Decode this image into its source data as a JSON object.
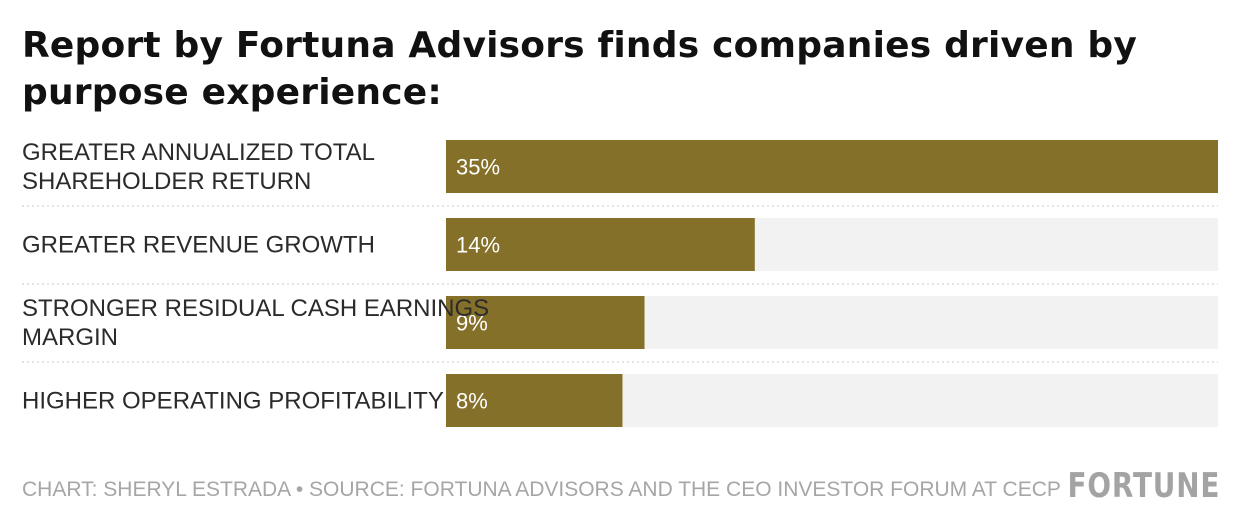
{
  "title": "Report by Fortuna Advisors finds companies driven by purpose experience:",
  "footer": "CHART: SHERYL ESTRADA • SOURCE: FORTUNA ADVISORS AND THE CEO INVESTOR FORUM AT CECP",
  "logo": "FORTUNE",
  "colors": {
    "bar": "#85702a",
    "track": "#f2f2f2",
    "label": "#2b2b2b",
    "footer": "#a6a6a6"
  },
  "chart_data": {
    "type": "bar",
    "orientation": "horizontal",
    "categories": [
      [
        "GREATER ANNUALIZED TOTAL",
        "SHAREHOLDER RETURN"
      ],
      [
        "GREATER REVENUE GROWTH"
      ],
      [
        "STRONGER RESIDUAL CASH EARNINGS",
        "MARGIN"
      ],
      [
        "HIGHER OPERATING PROFITABILITY"
      ]
    ],
    "values": [
      35,
      14,
      9,
      8
    ],
    "value_labels": [
      "35%",
      "14%",
      "9%",
      "8%"
    ],
    "xlim": [
      0,
      35
    ],
    "unit": "%",
    "grid": false,
    "legend": "none"
  }
}
